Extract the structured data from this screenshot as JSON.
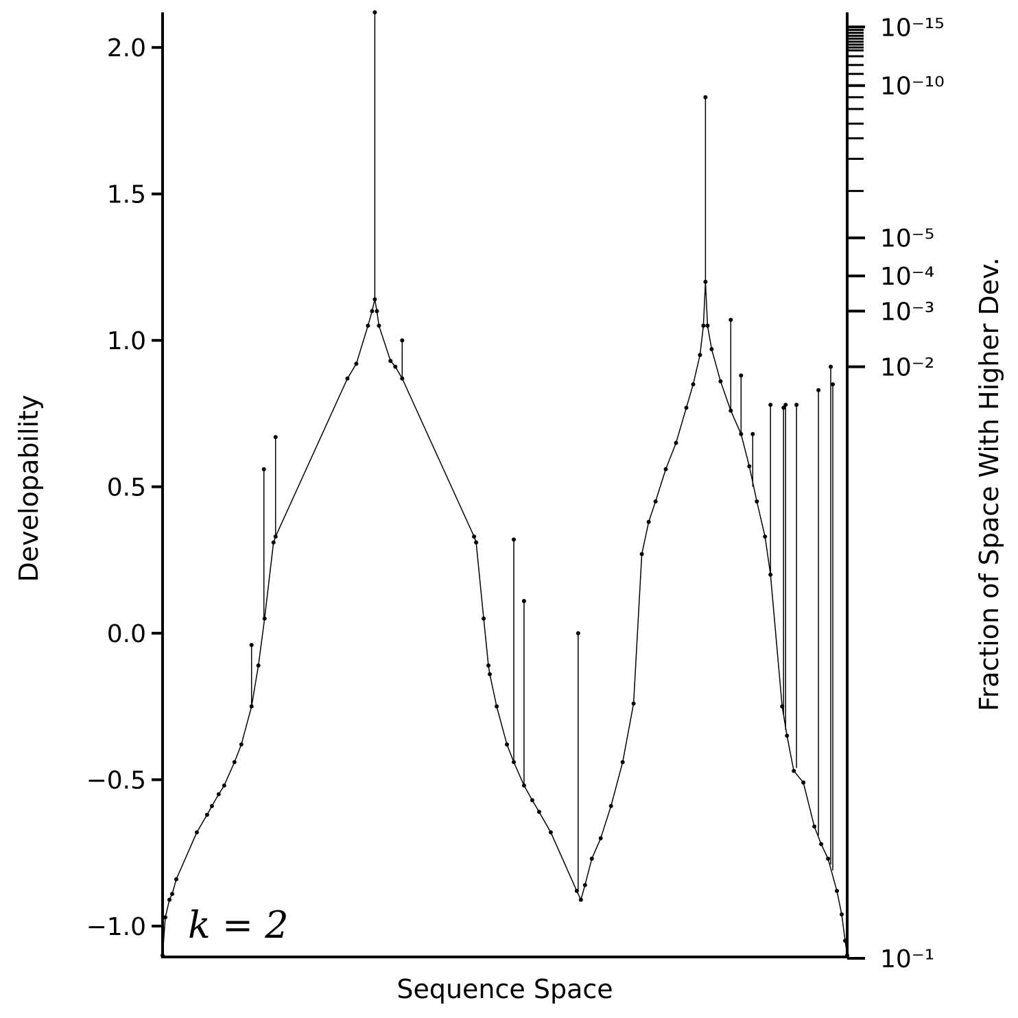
{
  "chart_data": {
    "type": "line",
    "xlabel": "Sequence Space",
    "ylabel": "Developability",
    "y2label": "Fraction of Space With Higher Dev.",
    "annotation": "k = 2",
    "ylim": [
      -1.11,
      2.12
    ],
    "xlim": [
      0,
      1
    ],
    "yticks": [
      -1.0,
      -0.5,
      0.0,
      0.5,
      1.0,
      1.5,
      2.0
    ],
    "ytick_labels": [
      "−1.0",
      "−0.5",
      "0.0",
      "0.5",
      "1.0",
      "1.5",
      "2.0"
    ],
    "y2_scale": "log",
    "y2_labeled_ticks": [
      {
        "value": 1e-15,
        "label": "10⁻¹⁵",
        "dev": 2.07
      },
      {
        "value": 1e-10,
        "label": "10⁻¹⁰",
        "dev": 1.87
      },
      {
        "value": 1e-05,
        "label": "10⁻⁵",
        "dev": 1.35
      },
      {
        "value": 0.0001,
        "label": "10⁻⁴",
        "dev": 1.22
      },
      {
        "value": 0.001,
        "label": "10⁻³",
        "dev": 1.1
      },
      {
        "value": 0.01,
        "label": "10⁻²",
        "dev": 0.91
      },
      {
        "value": 0.1,
        "label": "10⁻¹",
        "dev": -1.11
      }
    ],
    "y2_minor_ticks_dev": [
      2.06,
      2.05,
      2.04,
      2.03,
      2.02,
      2.01,
      2.0,
      1.99,
      1.97,
      1.94,
      1.91,
      1.83,
      1.79,
      1.74,
      1.69,
      1.62,
      1.51
    ],
    "grid": false,
    "legend": "none",
    "colors": {
      "line": "#000000",
      "points": "#000000"
    },
    "series": [
      {
        "values": [
          [
            0.0,
            -1.1
          ],
          [
            0.004,
            -0.97
          ],
          [
            0.01,
            -0.91
          ],
          [
            0.014,
            -0.89
          ],
          [
            0.02,
            -0.84
          ],
          [
            0.05,
            -0.68
          ],
          [
            0.065,
            -0.62
          ],
          [
            0.072,
            -0.59
          ],
          [
            0.082,
            -0.55
          ],
          [
            0.09,
            -0.52
          ],
          [
            0.105,
            -0.44
          ],
          [
            0.115,
            -0.38
          ],
          [
            0.13,
            -0.25
          ],
          [
            0.14,
            -0.11
          ],
          [
            0.149,
            0.05
          ],
          [
            0.162,
            0.31
          ],
          [
            0.165,
            0.33
          ],
          [
            0.27,
            0.87
          ],
          [
            0.283,
            0.92
          ],
          [
            0.3,
            1.05
          ],
          [
            0.306,
            1.1
          ],
          [
            0.31,
            1.14
          ],
          [
            0.313,
            1.1
          ],
          [
            0.316,
            1.05
          ],
          [
            0.333,
            0.93
          ],
          [
            0.34,
            0.91
          ],
          [
            0.35,
            0.87
          ],
          [
            0.455,
            0.33
          ],
          [
            0.458,
            0.31
          ],
          [
            0.469,
            0.05
          ],
          [
            0.476,
            -0.11
          ],
          [
            0.478,
            -0.14
          ],
          [
            0.488,
            -0.25
          ],
          [
            0.503,
            -0.38
          ],
          [
            0.513,
            -0.44
          ],
          [
            0.528,
            -0.52
          ],
          [
            0.54,
            -0.57
          ],
          [
            0.55,
            -0.61
          ],
          [
            0.567,
            -0.68
          ],
          [
            0.605,
            -0.88
          ],
          [
            0.611,
            -0.91
          ],
          [
            0.617,
            -0.86
          ],
          [
            0.627,
            -0.77
          ],
          [
            0.64,
            -0.7
          ],
          [
            0.655,
            -0.59
          ],
          [
            0.672,
            -0.44
          ],
          [
            0.688,
            -0.24
          ],
          [
            0.7,
            0.27
          ],
          [
            0.71,
            0.38
          ],
          [
            0.72,
            0.45
          ],
          [
            0.735,
            0.56
          ],
          [
            0.75,
            0.65
          ],
          [
            0.765,
            0.77
          ],
          [
            0.775,
            0.85
          ],
          [
            0.785,
            0.95
          ],
          [
            0.79,
            1.05
          ],
          [
            0.793,
            1.2
          ],
          [
            0.796,
            1.05
          ],
          [
            0.802,
            0.97
          ],
          [
            0.815,
            0.86
          ],
          [
            0.83,
            0.76
          ],
          [
            0.845,
            0.68
          ],
          [
            0.857,
            0.57
          ],
          [
            0.868,
            0.45
          ],
          [
            0.88,
            0.33
          ],
          [
            0.888,
            0.2
          ],
          [
            0.905,
            -0.25
          ],
          [
            0.912,
            -0.35
          ],
          [
            0.922,
            -0.47
          ],
          [
            0.936,
            -0.51
          ],
          [
            0.952,
            -0.66
          ],
          [
            0.962,
            -0.72
          ],
          [
            0.972,
            -0.77
          ],
          [
            0.985,
            -0.88
          ],
          [
            0.992,
            -0.96
          ],
          [
            0.997,
            -1.05
          ],
          [
            1.0,
            -1.1
          ]
        ],
        "spikes": [
          [
            0.148,
            0.05,
            0.56
          ],
          [
            0.165,
            0.33,
            0.67
          ],
          [
            0.13,
            -0.25,
            -0.04
          ],
          [
            0.31,
            1.14,
            2.12
          ],
          [
            0.35,
            0.87,
            1.0
          ],
          [
            0.513,
            -0.44,
            0.32
          ],
          [
            0.528,
            -0.52,
            0.11
          ],
          [
            0.607,
            -0.88,
            0.0
          ],
          [
            0.793,
            1.2,
            1.83
          ],
          [
            0.83,
            0.76,
            1.07
          ],
          [
            0.845,
            0.68,
            0.88
          ],
          [
            0.862,
            0.5,
            0.68
          ],
          [
            0.888,
            0.2,
            0.78
          ],
          [
            0.907,
            -0.28,
            0.77
          ],
          [
            0.91,
            -0.33,
            0.78
          ],
          [
            0.926,
            -0.46,
            0.78
          ],
          [
            0.958,
            -0.69,
            0.83
          ],
          [
            0.976,
            -0.79,
            0.91
          ],
          [
            0.979,
            -0.81,
            0.85
          ]
        ]
      }
    ]
  }
}
